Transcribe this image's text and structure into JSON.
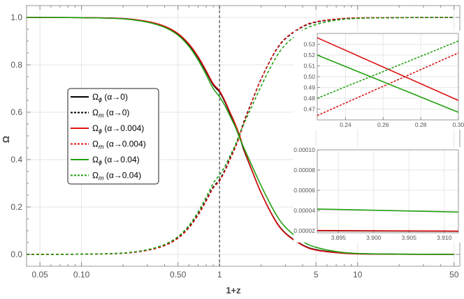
{
  "chart_data": {
    "type": "line",
    "xlabel": "1+z",
    "ylabel": "Ω",
    "xscale": "log",
    "xlim": [
      0.04,
      55
    ],
    "ylim": [
      -0.05,
      1.05
    ],
    "x_ticks": [
      0.05,
      0.1,
      0.5,
      1,
      5,
      10,
      50
    ],
    "x_tick_labels": [
      "0.05",
      "0.10",
      "0.50",
      "1",
      "5",
      "10",
      "50"
    ],
    "y_ticks": [
      0.0,
      0.2,
      0.4,
      0.6,
      0.8,
      1.0
    ],
    "y_tick_labels": [
      "0.0",
      "0.2",
      "0.4",
      "0.6",
      "0.8",
      "1.0"
    ],
    "grid": true,
    "reference_line": {
      "x": 1,
      "style": "dashed",
      "color": "#555555"
    },
    "legend_position": "left",
    "colors": {
      "black": "#000000",
      "red": "#dd1111",
      "green": "#22a010"
    },
    "series": [
      {
        "name": "Ω_ϕ (α→0)",
        "color": "#000000",
        "style": "solid",
        "x": [
          0.04,
          0.1,
          0.2,
          0.3,
          0.4,
          0.5,
          0.6,
          0.7,
          0.8,
          0.9,
          1.0,
          1.1,
          1.2,
          1.3,
          1.4,
          1.5,
          1.7,
          2.0,
          2.5,
          3,
          4,
          5,
          7,
          10,
          20,
          50
        ],
        "y": [
          1.0,
          0.999,
          0.995,
          0.982,
          0.962,
          0.93,
          0.885,
          0.83,
          0.77,
          0.715,
          0.685,
          0.64,
          0.59,
          0.545,
          0.495,
          0.44,
          0.36,
          0.26,
          0.15,
          0.09,
          0.04,
          0.02,
          0.008,
          0.003,
          0.001,
          0.0
        ]
      },
      {
        "name": "Ω_m (α→0)",
        "color": "#000000",
        "style": "dashed",
        "x": [
          0.04,
          0.1,
          0.2,
          0.3,
          0.4,
          0.5,
          0.6,
          0.7,
          0.8,
          0.9,
          1.0,
          1.1,
          1.2,
          1.3,
          1.4,
          1.5,
          1.7,
          2.0,
          2.5,
          3,
          4,
          5,
          7,
          10,
          20,
          50
        ],
        "y": [
          0.0,
          0.001,
          0.005,
          0.018,
          0.038,
          0.07,
          0.115,
          0.17,
          0.23,
          0.285,
          0.315,
          0.36,
          0.41,
          0.455,
          0.505,
          0.56,
          0.64,
          0.74,
          0.85,
          0.91,
          0.96,
          0.98,
          0.992,
          0.997,
          0.999,
          1.0
        ]
      },
      {
        "name": "Ω_ϕ (α→0.004)",
        "color": "#dd1111",
        "style": "solid",
        "x": [
          0.04,
          0.1,
          0.2,
          0.3,
          0.4,
          0.5,
          0.6,
          0.7,
          0.8,
          0.9,
          1.0,
          1.1,
          1.2,
          1.3,
          1.4,
          1.5,
          1.7,
          2.0,
          2.5,
          3,
          4,
          5,
          7,
          10,
          20,
          50
        ],
        "y": [
          1.0,
          0.999,
          0.995,
          0.983,
          0.963,
          0.932,
          0.888,
          0.834,
          0.775,
          0.72,
          0.69,
          0.645,
          0.595,
          0.55,
          0.5,
          0.445,
          0.362,
          0.26,
          0.148,
          0.088,
          0.038,
          0.018,
          0.007,
          0.002,
          0.0005,
          0.0
        ]
      },
      {
        "name": "Ω_m (α→0.004)",
        "color": "#dd1111",
        "style": "dashed",
        "x": [
          0.04,
          0.1,
          0.2,
          0.3,
          0.4,
          0.5,
          0.6,
          0.7,
          0.8,
          0.9,
          1.0,
          1.1,
          1.2,
          1.3,
          1.4,
          1.5,
          1.7,
          2.0,
          2.5,
          3,
          4,
          5,
          7,
          10,
          20,
          50
        ],
        "y": [
          0.0,
          0.001,
          0.005,
          0.017,
          0.037,
          0.068,
          0.112,
          0.166,
          0.225,
          0.28,
          0.31,
          0.355,
          0.405,
          0.45,
          0.5,
          0.555,
          0.638,
          0.74,
          0.852,
          0.912,
          0.962,
          0.982,
          0.993,
          0.998,
          0.9995,
          1.0
        ]
      },
      {
        "name": "Ω_ϕ (α→0.04)",
        "color": "#22a010",
        "style": "solid",
        "x": [
          0.04,
          0.1,
          0.2,
          0.3,
          0.4,
          0.5,
          0.6,
          0.7,
          0.8,
          0.9,
          1.0,
          1.1,
          1.2,
          1.3,
          1.4,
          1.5,
          1.7,
          2.0,
          2.5,
          3,
          4,
          5,
          7,
          10,
          20,
          50
        ],
        "y": [
          1.0,
          0.999,
          0.994,
          0.98,
          0.958,
          0.925,
          0.878,
          0.82,
          0.758,
          0.7,
          0.665,
          0.625,
          0.58,
          0.538,
          0.49,
          0.45,
          0.38,
          0.29,
          0.18,
          0.115,
          0.055,
          0.03,
          0.012,
          0.004,
          0.001,
          0.0
        ]
      },
      {
        "name": "Ω_m (α→0.04)",
        "color": "#22a010",
        "style": "dashed",
        "x": [
          0.04,
          0.1,
          0.2,
          0.3,
          0.4,
          0.5,
          0.6,
          0.7,
          0.8,
          0.9,
          1.0,
          1.1,
          1.2,
          1.3,
          1.4,
          1.5,
          1.7,
          2.0,
          2.5,
          3,
          4,
          5,
          7,
          10,
          20,
          50
        ],
        "y": [
          0.0,
          0.001,
          0.006,
          0.02,
          0.042,
          0.075,
          0.122,
          0.18,
          0.242,
          0.3,
          0.335,
          0.375,
          0.42,
          0.462,
          0.51,
          0.55,
          0.62,
          0.71,
          0.82,
          0.885,
          0.945,
          0.97,
          0.988,
          0.996,
          0.999,
          1.0
        ]
      }
    ],
    "legend": [
      {
        "label": "Ω_ϕ (α→0)",
        "color": "#000000",
        "style": "solid"
      },
      {
        "label": "Ω_m (α→0)",
        "color": "#000000",
        "style": "dashed"
      },
      {
        "label": "Ω_ϕ (α→0.004)",
        "color": "#dd1111",
        "style": "solid"
      },
      {
        "label": "Ω_m (α→0.004)",
        "color": "#dd1111",
        "style": "dashed"
      },
      {
        "label": "Ω_ϕ (α→0.04)",
        "color": "#22a010",
        "style": "solid"
      },
      {
        "label": "Ω_m (α→0.04)",
        "color": "#22a010",
        "style": "dashed"
      }
    ],
    "insets": [
      {
        "xlim": [
          0.225,
          0.3
        ],
        "ylim": [
          0.46,
          0.54
        ],
        "x_ticks": [
          0.24,
          0.26,
          0.28,
          0.3
        ],
        "x_tick_labels": [
          "0.24",
          "0.26",
          "0.28",
          "0.30"
        ],
        "y_ticks": [
          0.47,
          0.48,
          0.49,
          0.5,
          0.51,
          0.52,
          0.53
        ],
        "y_tick_labels": [
          "0.47",
          "0.48",
          "0.49",
          "0.50",
          "0.51",
          "0.52",
          "0.53"
        ],
        "series": [
          {
            "color": "#dd1111",
            "style": "solid",
            "x": [
              0.225,
              0.3
            ],
            "y": [
              0.536,
              0.478
            ]
          },
          {
            "color": "#dd1111",
            "style": "dashed",
            "x": [
              0.225,
              0.3
            ],
            "y": [
              0.464,
              0.522
            ]
          },
          {
            "color": "#22a010",
            "style": "solid",
            "x": [
              0.225,
              0.3
            ],
            "y": [
              0.52,
              0.467
            ]
          },
          {
            "color": "#22a010",
            "style": "dashed",
            "x": [
              0.225,
              0.3
            ],
            "y": [
              0.48,
              0.533
            ]
          }
        ]
      },
      {
        "xlim": [
          3.892,
          3.912
        ],
        "ylim": [
          1.8e-05,
          0.0001
        ],
        "x_ticks": [
          3.895,
          3.9,
          3.905,
          3.91
        ],
        "x_tick_labels": [
          "3.895",
          "3.900",
          "3.905",
          "3.910"
        ],
        "y_ticks": [
          2e-05,
          4e-05,
          6e-05,
          8e-05,
          0.0001
        ],
        "y_tick_labels": [
          "0.00002",
          "0.00004",
          "0.00006",
          "0.00008",
          "0.00010"
        ],
        "series": [
          {
            "color": "#000000",
            "style": "solid",
            "x": [
              3.892,
              3.912
            ],
            "y": [
              2e-05,
              1.95e-05
            ]
          },
          {
            "color": "#dd1111",
            "style": "solid",
            "x": [
              3.892,
              3.912
            ],
            "y": [
              2.03e-05,
              1.97e-05
            ]
          },
          {
            "color": "#22a010",
            "style": "solid",
            "x": [
              3.892,
              3.912
            ],
            "y": [
              4.15e-05,
              3.85e-05
            ]
          }
        ]
      }
    ]
  }
}
